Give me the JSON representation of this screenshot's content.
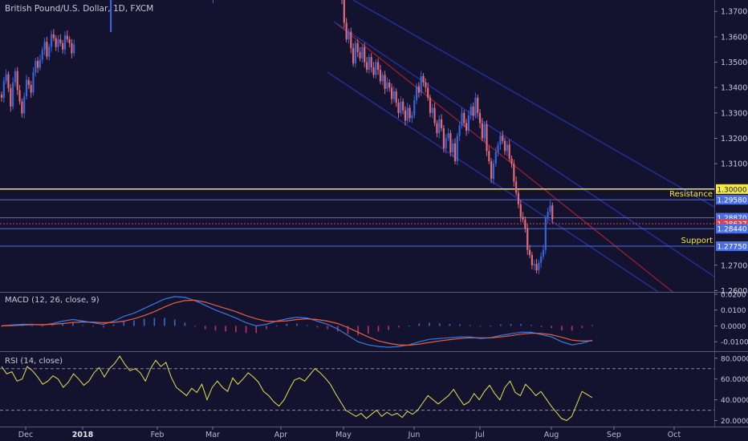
{
  "header": {
    "title": "British Pound/U.S. Dollar, 1D, FXCM"
  },
  "annotations": {
    "resistance": "Resistance",
    "support": "Support"
  },
  "macd": {
    "title": "MACD (12, 26, close, 9)"
  },
  "rsi": {
    "title": "RSI (14, close)"
  },
  "colors": {
    "background": "#131330",
    "up": "#3a64d6",
    "down": "#e06a78",
    "yellow": "#f2e84a",
    "level_blue": "#4a6fe8",
    "channel": "#2233a8",
    "trend_red": "#c02030",
    "price_label": "#e04050"
  },
  "chart_data": [
    {
      "type": "candlestick",
      "title": "British Pound/U.S. Dollar, 1D, FXCM",
      "x_ticks": [
        "Dec",
        "2018",
        "Feb",
        "Mar",
        "Apr",
        "May",
        "Jun",
        "Jul",
        "Aug",
        "Sep",
        "Oct"
      ],
      "y_ticks": [
        "1.37000",
        "1.36000",
        "1.35000",
        "1.34000",
        "1.33000",
        "1.32000",
        "1.31000",
        "1.27000",
        "1.26000"
      ],
      "ylim": [
        1.2595,
        1.3745
      ],
      "levels": [
        {
          "label": "1.30000",
          "value": 1.3,
          "color": "yellow",
          "annotation": ""
        },
        {
          "label": "1.29580",
          "value": 1.2958,
          "color": "blue",
          "annotation": "Resistance"
        },
        {
          "label": "1.28870",
          "value": 1.2887,
          "color": "blue",
          "annotation": ""
        },
        {
          "label": "1.28637",
          "value": 1.28637,
          "color": "red",
          "annotation": ""
        },
        {
          "label": "1.28440",
          "value": 1.2844,
          "color": "blue",
          "annotation": ""
        },
        {
          "label": "1.27750",
          "value": 1.2775,
          "color": "blue",
          "annotation": "Support"
        }
      ],
      "segments": [
        {
          "name": "nov-jan",
          "x_range": [
            "Nov 28, 2017",
            "Jan 12, 2018"
          ],
          "close": [
            1.336,
            1.3425,
            1.3452,
            1.3398,
            1.3325,
            1.342,
            1.3465,
            1.339,
            1.3345,
            1.3298,
            1.3365,
            1.343,
            1.341,
            1.338,
            1.346,
            1.3505,
            1.3478,
            1.351,
            1.3548,
            1.358,
            1.3522,
            1.356,
            1.361,
            1.3595,
            1.356,
            1.359,
            1.3575,
            1.355,
            1.3605,
            1.359,
            1.3575,
            1.3535,
            1.357
          ]
        },
        {
          "name": "apr-aug",
          "x_range": [
            "Apr 17, 2018",
            "Aug 21, 2018"
          ],
          "close": [
            1.3745,
            1.3655,
            1.359,
            1.362,
            1.3555,
            1.3495,
            1.3575,
            1.354,
            1.3515,
            1.356,
            1.35,
            1.347,
            1.352,
            1.348,
            1.345,
            1.35,
            1.347,
            1.3425,
            1.345,
            1.3395,
            1.342,
            1.34,
            1.3355,
            1.3385,
            1.334,
            1.33,
            1.3345,
            1.331,
            1.327,
            1.332,
            1.328,
            1.329,
            1.335,
            1.3405,
            1.338,
            1.3445,
            1.342,
            1.34,
            1.336,
            1.33,
            1.332,
            1.326,
            1.322,
            1.3275,
            1.324,
            1.316,
            1.32,
            1.322,
            1.3145,
            1.318,
            1.311,
            1.321,
            1.325,
            1.33,
            1.326,
            1.323,
            1.329,
            1.3325,
            1.329,
            1.336,
            1.33,
            1.326,
            1.32,
            1.3255,
            1.315,
            1.311,
            1.304,
            1.31,
            1.3145,
            1.3175,
            1.321,
            1.319,
            1.315,
            1.3175,
            1.312,
            1.31,
            1.303,
            1.2985,
            1.294,
            1.289,
            1.288,
            1.2845,
            1.276,
            1.274,
            1.27,
            1.2705,
            1.268,
            1.271,
            1.2735,
            1.276,
            1.2885,
            1.291,
            1.2935,
            1.288
          ]
        }
      ]
    },
    {
      "type": "line",
      "title": "MACD (12, 26, close, 9)",
      "y_ticks": [
        "0.0200",
        "0.0100",
        "0.0000",
        "-0.0100"
      ],
      "ylim": [
        -0.016,
        0.021
      ],
      "series": [
        {
          "name": "MACD",
          "color": "#3a7bdc",
          "values": [
            0.0,
            0.0005,
            0.001,
            0.001,
            0.0005,
            0.0015,
            0.003,
            0.004,
            0.003,
            0.002,
            0.001,
            0.003,
            0.006,
            0.008,
            0.011,
            0.014,
            0.017,
            0.0185,
            0.018,
            0.016,
            0.013,
            0.01,
            0.0075,
            0.005,
            0.002,
            0.0,
            0.001,
            0.003,
            0.0045,
            0.0055,
            0.005,
            0.003,
            0.001,
            -0.002,
            -0.006,
            -0.01,
            -0.012,
            -0.013,
            -0.0135,
            -0.013,
            -0.012,
            -0.01,
            -0.0085,
            -0.008,
            -0.0075,
            -0.007,
            -0.007,
            -0.008,
            -0.0075,
            -0.006,
            -0.005,
            -0.004,
            -0.004,
            -0.0055,
            -0.007,
            -0.01,
            -0.012,
            -0.011,
            -0.009
          ]
        },
        {
          "name": "Signal",
          "color": "#e0604a",
          "values": [
            0.0,
            0.0002,
            0.0005,
            0.0008,
            0.0008,
            0.001,
            0.0015,
            0.0022,
            0.0025,
            0.0024,
            0.002,
            0.0022,
            0.003,
            0.0045,
            0.0065,
            0.009,
            0.012,
            0.0145,
            0.016,
            0.0162,
            0.015,
            0.013,
            0.011,
            0.009,
            0.0065,
            0.0045,
            0.003,
            0.0028,
            0.0032,
            0.004,
            0.0045,
            0.004,
            0.003,
            0.0015,
            -0.001,
            -0.004,
            -0.007,
            -0.0095,
            -0.011,
            -0.012,
            -0.0122,
            -0.0115,
            -0.0105,
            -0.0095,
            -0.0087,
            -0.008,
            -0.0075,
            -0.0076,
            -0.0076,
            -0.007,
            -0.0062,
            -0.0052,
            -0.0046,
            -0.0048,
            -0.0056,
            -0.0072,
            -0.009,
            -0.0096,
            -0.0094
          ]
        }
      ]
    },
    {
      "type": "line",
      "title": "RSI (14, close)",
      "y_ticks": [
        "80.0000",
        "60.0000",
        "40.0000",
        "20.0000"
      ],
      "ylim": [
        15,
        86
      ],
      "series": [
        {
          "name": "RSI",
          "color": "#e8e04a",
          "values": [
            72,
            65,
            67,
            58,
            60,
            72,
            68,
            62,
            55,
            58,
            63,
            60,
            52,
            57,
            65,
            60,
            54,
            58,
            66,
            71,
            62,
            70,
            75,
            82,
            74,
            68,
            70,
            66,
            58,
            70,
            78,
            72,
            76,
            62,
            52,
            48,
            44,
            51,
            47,
            55,
            40,
            52,
            58,
            52,
            48,
            61,
            55,
            60,
            66,
            62,
            57,
            48,
            44,
            38,
            34,
            40,
            50,
            59,
            61,
            58,
            64,
            70,
            66,
            61,
            55,
            46,
            38,
            30,
            27,
            24,
            27,
            22,
            26,
            30,
            24,
            28,
            25,
            27,
            23,
            29,
            26,
            30,
            37,
            44,
            40,
            36,
            40,
            44,
            50,
            42,
            35,
            38,
            46,
            40,
            48,
            54,
            46,
            40,
            52,
            58,
            47,
            44,
            55,
            50,
            44,
            48,
            41,
            34,
            28,
            22,
            20,
            24,
            36,
            48,
            45,
            42
          ]
        }
      ],
      "levels": [
        70,
        30
      ]
    }
  ]
}
